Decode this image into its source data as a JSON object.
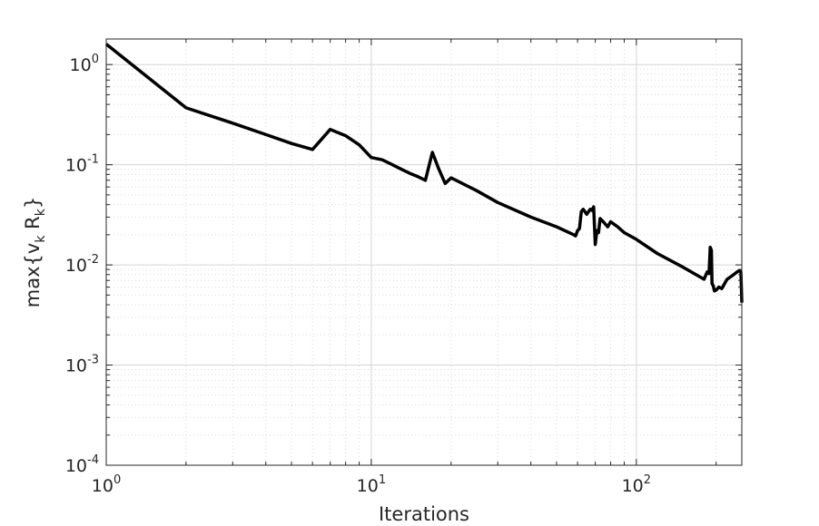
{
  "chart_data": {
    "type": "line",
    "title": "",
    "xlabel": "Iterations",
    "ylabel": {
      "prefix": "max{v",
      "sub1": "k",
      "mid": " R",
      "sub2": "k",
      "suffix": "}"
    },
    "x_scale": "log",
    "y_scale": "log",
    "xlim": [
      1,
      250
    ],
    "ylim": [
      0.0001,
      1.8
    ],
    "grid": true,
    "legend": "none",
    "line_color": "#000000",
    "x_ticks": [
      {
        "value": 1,
        "base": "10",
        "exp": "0"
      },
      {
        "value": 10,
        "base": "10",
        "exp": "1"
      },
      {
        "value": 100,
        "base": "10",
        "exp": "2"
      }
    ],
    "y_ticks": [
      {
        "value": 1,
        "base": "10",
        "exp": "0"
      },
      {
        "value": 0.1,
        "base": "10",
        "exp": "-1"
      },
      {
        "value": 0.01,
        "base": "10",
        "exp": "-2"
      },
      {
        "value": 0.001,
        "base": "10",
        "exp": "-3"
      },
      {
        "value": 0.0001,
        "base": "10",
        "exp": "-4"
      }
    ],
    "series": [
      {
        "x": [
          1,
          2,
          3,
          4,
          5,
          6,
          7,
          8,
          9,
          10,
          11,
          12,
          13,
          14,
          15,
          16,
          17,
          18,
          19,
          20,
          25,
          30,
          40,
          50,
          58,
          59,
          60,
          61,
          62,
          63,
          65,
          67,
          68,
          69,
          70,
          71,
          72,
          73,
          75,
          78,
          80,
          85,
          90,
          100,
          120,
          150,
          180,
          185,
          188,
          190,
          192,
          193,
          195,
          197,
          200,
          205,
          210,
          220,
          230,
          240,
          245,
          248,
          249,
          250
        ],
        "y": [
          1.6,
          0.37,
          0.26,
          0.2,
          0.163,
          0.142,
          0.225,
          0.195,
          0.158,
          0.118,
          0.112,
          0.1,
          0.09,
          0.082,
          0.076,
          0.07,
          0.133,
          0.09,
          0.065,
          0.074,
          0.055,
          0.042,
          0.03,
          0.024,
          0.02,
          0.0195,
          0.022,
          0.023,
          0.034,
          0.036,
          0.032,
          0.036,
          0.035,
          0.038,
          0.016,
          0.022,
          0.021,
          0.029,
          0.027,
          0.024,
          0.027,
          0.024,
          0.021,
          0.018,
          0.013,
          0.0095,
          0.0072,
          0.0085,
          0.0082,
          0.015,
          0.014,
          0.0065,
          0.0062,
          0.0055,
          0.0056,
          0.006,
          0.0058,
          0.0072,
          0.0078,
          0.0085,
          0.0088,
          0.0085,
          0.006,
          0.0042
        ]
      }
    ]
  }
}
